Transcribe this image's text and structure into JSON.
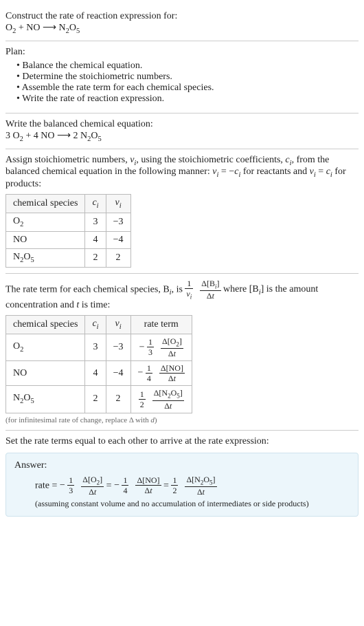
{
  "header": {
    "prompt": "Construct the rate of reaction expression for:",
    "equation_html": "O<sub>2</sub> + NO ⟶ N<sub>2</sub>O<sub>5</sub>"
  },
  "plan": {
    "title": "Plan:",
    "items": [
      "Balance the chemical equation.",
      "Determine the stoichiometric numbers.",
      "Assemble the rate term for each chemical species.",
      "Write the rate of reaction expression."
    ]
  },
  "balanced": {
    "intro": "Write the balanced chemical equation:",
    "equation_html": "3 O<sub>2</sub> + 4 NO ⟶ 2 N<sub>2</sub>O<sub>5</sub>"
  },
  "stoich_text": {
    "para_html": "Assign stoichiometric numbers, <span class=\"it\">ν<sub>i</sub></span>, using the stoichiometric coefficients, <span class=\"it\">c<sub>i</sub></span>, from the balanced chemical equation in the following manner: <span class=\"it\">ν<sub>i</sub></span> = −<span class=\"it\">c<sub>i</sub></span> for reactants and <span class=\"it\">ν<sub>i</sub></span> = <span class=\"it\">c<sub>i</sub></span> for products:"
  },
  "stoich_table": {
    "headers": {
      "species": "chemical species",
      "ci_html": "<span class=\"it\">c<sub>i</sub></span>",
      "vi_html": "<span class=\"it\">ν<sub>i</sub></span>"
    },
    "rows": [
      {
        "species_html": "O<sub>2</sub>",
        "ci": "3",
        "vi": "−3"
      },
      {
        "species_html": "NO",
        "ci": "4",
        "vi": "−4"
      },
      {
        "species_html": "N<sub>2</sub>O<sub>5</sub>",
        "ci": "2",
        "vi": "2"
      }
    ]
  },
  "rate_term_text": {
    "pre": "The rate term for each chemical species, B",
    "sub_i": "i",
    "mid": ", is ",
    "frac1": {
      "num": "1",
      "den_html": "<span class=\"it\">ν<sub>i</sub></span>"
    },
    "frac2": {
      "num_html": "Δ[B<sub><span class=\"it\">i</span></sub>]",
      "den_html": "Δ<span class=\"it\">t</span>"
    },
    "post_html": " where [B<sub><span class=\"it\">i</span></sub>] is the amount concentration and <span class=\"it\">t</span> is time:"
  },
  "rate_table": {
    "headers": {
      "species": "chemical species",
      "ci_html": "<span class=\"it\">c<sub>i</sub></span>",
      "vi_html": "<span class=\"it\">ν<sub>i</sub></span>",
      "rate": "rate term"
    },
    "rows": [
      {
        "species_html": "O<sub>2</sub>",
        "ci": "3",
        "vi": "−3",
        "neg": "−",
        "f1n": "1",
        "f1d": "3",
        "f2n_html": "Δ[O<sub>2</sub>]",
        "f2d_html": "Δ<span class=\"it\">t</span>"
      },
      {
        "species_html": "NO",
        "ci": "4",
        "vi": "−4",
        "neg": "−",
        "f1n": "1",
        "f1d": "4",
        "f2n_html": "Δ[NO]",
        "f2d_html": "Δ<span class=\"it\">t</span>"
      },
      {
        "species_html": "N<sub>2</sub>O<sub>5</sub>",
        "ci": "2",
        "vi": "2",
        "neg": "",
        "f1n": "1",
        "f1d": "2",
        "f2n_html": "Δ[N<sub>2</sub>O<sub>5</sub>]",
        "f2d_html": "Δ<span class=\"it\">t</span>"
      }
    ],
    "note_html": "(for infinitesimal rate of change, replace Δ with <span class=\"it\">d</span>)"
  },
  "final": {
    "intro": "Set the rate terms equal to each other to arrive at the rate expression:"
  },
  "answer": {
    "label": "Answer:",
    "rate_label": "rate = ",
    "terms": [
      {
        "neg": "−",
        "f1n": "1",
        "f1d": "3",
        "f2n_html": "Δ[O<sub>2</sub>]",
        "f2d_html": "Δ<span class=\"it\">t</span>"
      },
      {
        "neg": "−",
        "f1n": "1",
        "f1d": "4",
        "f2n_html": "Δ[NO]",
        "f2d_html": "Δ<span class=\"it\">t</span>"
      },
      {
        "neg": "",
        "f1n": "1",
        "f1d": "2",
        "f2n_html": "Δ[N<sub>2</sub>O<sub>5</sub>]",
        "f2d_html": "Δ<span class=\"it\">t</span>"
      }
    ],
    "eq_sep": " = ",
    "note": "(assuming constant volume and no accumulation of intermediates or side products)"
  },
  "colors": {
    "answer_bg": "#ecf6fb",
    "answer_border": "#cfe3ed",
    "rule": "#cccccc",
    "table_border": "#bbbbbb"
  }
}
